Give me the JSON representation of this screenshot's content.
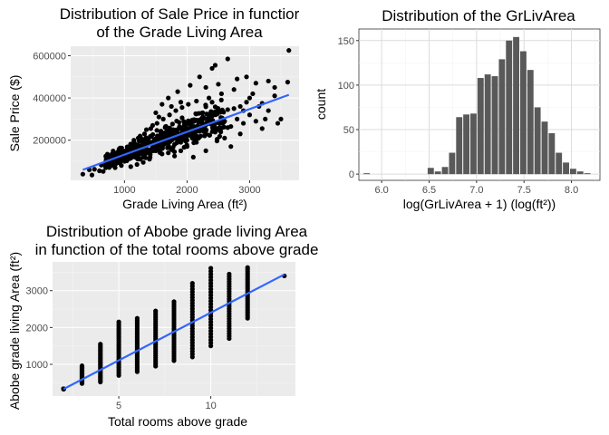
{
  "chart_data": [
    {
      "type": "scatter",
      "title_lines": [
        "Distribution of Sale Price in functior",
        "of the Grade Living Area"
      ],
      "xlabel": "Grade Living Area (ft²)",
      "ylabel": "Sale Price ($)",
      "xlim": [
        140,
        3790
      ],
      "ylim": [
        10000,
        645000
      ],
      "x_ticks": [
        1000,
        2000,
        3000
      ],
      "x_tick_labels": [
        "1000",
        "2000",
        "3000"
      ],
      "y_ticks": [
        200000,
        400000,
        600000
      ],
      "y_tick_labels": [
        "200000",
        "400000",
        "600000"
      ],
      "grid": true,
      "points": [
        [
          334,
          39300
        ],
        [
          438,
          60000
        ],
        [
          480,
          35311
        ],
        [
          520,
          62500
        ],
        [
          600,
          55000
        ],
        [
          630,
          82000
        ],
        [
          660,
          52000
        ],
        [
          700,
          70000
        ],
        [
          720,
          90000
        ],
        [
          760,
          79000
        ],
        [
          800,
          95000
        ],
        [
          830,
          110000
        ],
        [
          860,
          88000
        ],
        [
          880,
          125000
        ],
        [
          900,
          105000
        ],
        [
          920,
          140000
        ],
        [
          950,
          118000
        ],
        [
          980,
          130000
        ],
        [
          1000,
          100000
        ],
        [
          1020,
          150000
        ],
        [
          1050,
          128000
        ],
        [
          1080,
          170000
        ],
        [
          1100,
          115000
        ],
        [
          1120,
          140000
        ],
        [
          1150,
          185000
        ],
        [
          1180,
          130000
        ],
        [
          1200,
          155000
        ],
        [
          1220,
          210000
        ],
        [
          1250,
          145000
        ],
        [
          1280,
          175000
        ],
        [
          1300,
          120000
        ],
        [
          1320,
          230000
        ],
        [
          1350,
          160000
        ],
        [
          1380,
          190000
        ],
        [
          1400,
          140000
        ],
        [
          1420,
          255000
        ],
        [
          1450,
          175000
        ],
        [
          1480,
          205000
        ],
        [
          1500,
          150000
        ],
        [
          1520,
          280000
        ],
        [
          1550,
          185000
        ],
        [
          1580,
          220000
        ],
        [
          1600,
          160000
        ],
        [
          1620,
          300000
        ],
        [
          1650,
          195000
        ],
        [
          1680,
          235000
        ],
        [
          1700,
          170000
        ],
        [
          1720,
          320000
        ],
        [
          1750,
          210000
        ],
        [
          1780,
          250000
        ],
        [
          1800,
          180000
        ],
        [
          1820,
          340000
        ],
        [
          1850,
          220000
        ],
        [
          1880,
          265000
        ],
        [
          1900,
          190000
        ],
        [
          1920,
          355000
        ],
        [
          1950,
          230000
        ],
        [
          1980,
          280000
        ],
        [
          2000,
          200000
        ],
        [
          2020,
          370000
        ],
        [
          2050,
          245000
        ],
        [
          2080,
          295000
        ],
        [
          2100,
          215000
        ],
        [
          2150,
          385000
        ],
        [
          2200,
          260000
        ],
        [
          2250,
          310000
        ],
        [
          2300,
          230000
        ],
        [
          2350,
          400000
        ],
        [
          2400,
          275000
        ],
        [
          2450,
          325000
        ],
        [
          2500,
          250000
        ],
        [
          2550,
          420000
        ],
        [
          2600,
          290000
        ],
        [
          2650,
          345000
        ],
        [
          2700,
          265000
        ],
        [
          2750,
          440000
        ],
        [
          2800,
          300000
        ],
        [
          2850,
          360000
        ],
        [
          2900,
          280000
        ],
        [
          2950,
          380000
        ],
        [
          3000,
          320000
        ],
        [
          3100,
          470000
        ],
        [
          3200,
          375000
        ],
        [
          3300,
          340000
        ],
        [
          3400,
          410000
        ],
        [
          3500,
          300000
        ],
        [
          3608,
          475000
        ],
        [
          3627,
          625000
        ],
        [
          1600,
          370000
        ],
        [
          1700,
          400000
        ],
        [
          1850,
          430000
        ],
        [
          2200,
          500000
        ],
        [
          2450,
          555000
        ],
        [
          2650,
          585000
        ],
        [
          2400,
          540000
        ],
        [
          1900,
          380000
        ],
        [
          2300,
          450000
        ],
        [
          1500,
          330000
        ],
        [
          1650,
          260000
        ],
        [
          1750,
          360000
        ],
        [
          2050,
          460000
        ],
        [
          2500,
          465000
        ],
        [
          2800,
          490000
        ],
        [
          2950,
          500000
        ],
        [
          3050,
          420000
        ],
        [
          3150,
          360000
        ],
        [
          3250,
          300000
        ],
        [
          3400,
          450000
        ],
        [
          3450,
          280000
        ],
        [
          2100,
          120000
        ],
        [
          2300,
          150000
        ],
        [
          2600,
          210000
        ],
        [
          2700,
          170000
        ],
        [
          2850,
          230000
        ],
        [
          3200,
          255000
        ],
        [
          1300,
          95000
        ],
        [
          1200,
          85000
        ],
        [
          1100,
          75000
        ],
        [
          1400,
          110000
        ],
        [
          1600,
          135000
        ],
        [
          1800,
          125000
        ],
        [
          1900,
          150000
        ],
        [
          2000,
          170000
        ],
        [
          950,
          80000
        ],
        [
          850,
          70000
        ],
        [
          1050,
          160000
        ],
        [
          1150,
          200000
        ],
        [
          1250,
          220000
        ],
        [
          1350,
          250000
        ],
        [
          1450,
          270000
        ],
        [
          1550,
          310000
        ],
        [
          1700,
          140000
        ],
        [
          2150,
          190000
        ],
        [
          2250,
          330000
        ],
        [
          2350,
          285000
        ],
        [
          2400,
          380000
        ],
        [
          2550,
          300000
        ],
        [
          2650,
          260000
        ],
        [
          2750,
          350000
        ],
        [
          2900,
          340000
        ],
        [
          3000,
          400000
        ],
        [
          3100,
          290000
        ],
        [
          3300,
          480000
        ]
      ],
      "trend": {
        "x": [
          334,
          3627
        ],
        "y": [
          60000,
          415000
        ]
      }
    },
    {
      "type": "bar",
      "title": "Distribution of the GrLivArea",
      "xlabel": "log(GrLivArea + 1) (log(ft²))",
      "ylabel": "count",
      "xlim": [
        5.76,
        8.3
      ],
      "ylim": [
        -7,
        163
      ],
      "x_ticks": [
        6.0,
        6.5,
        7.0,
        7.5,
        8.0
      ],
      "x_tick_labels": [
        "6.0",
        "6.5",
        "7.0",
        "7.5",
        "8.0"
      ],
      "y_ticks": [
        0,
        50,
        100,
        150
      ],
      "y_tick_labels": [
        "0",
        "50",
        "100",
        "150"
      ],
      "grid": true,
      "bins": [
        {
          "x0": 5.805,
          "x1": 5.88,
          "count": 1
        },
        {
          "x0": 6.48,
          "x1": 6.555,
          "count": 7
        },
        {
          "x0": 6.555,
          "x1": 6.63,
          "count": 3
        },
        {
          "x0": 6.63,
          "x1": 6.705,
          "count": 8
        },
        {
          "x0": 6.705,
          "x1": 6.78,
          "count": 24
        },
        {
          "x0": 6.78,
          "x1": 6.855,
          "count": 64
        },
        {
          "x0": 6.855,
          "x1": 6.93,
          "count": 67
        },
        {
          "x0": 6.93,
          "x1": 7.005,
          "count": 68
        },
        {
          "x0": 7.005,
          "x1": 7.08,
          "count": 108
        },
        {
          "x0": 7.08,
          "x1": 7.155,
          "count": 112
        },
        {
          "x0": 7.155,
          "x1": 7.23,
          "count": 110
        },
        {
          "x0": 7.23,
          "x1": 7.305,
          "count": 129
        },
        {
          "x0": 7.305,
          "x1": 7.38,
          "count": 150
        },
        {
          "x0": 7.38,
          "x1": 7.455,
          "count": 154
        },
        {
          "x0": 7.455,
          "x1": 7.53,
          "count": 138
        },
        {
          "x0": 7.53,
          "x1": 7.605,
          "count": 117
        },
        {
          "x0": 7.605,
          "x1": 7.68,
          "count": 75
        },
        {
          "x0": 7.68,
          "x1": 7.755,
          "count": 59
        },
        {
          "x0": 7.755,
          "x1": 7.83,
          "count": 46
        },
        {
          "x0": 7.83,
          "x1": 7.905,
          "count": 24
        },
        {
          "x0": 7.905,
          "x1": 7.98,
          "count": 13
        },
        {
          "x0": 7.98,
          "x1": 8.055,
          "count": 6
        },
        {
          "x0": 8.055,
          "x1": 8.13,
          "count": 3
        },
        {
          "x0": 8.13,
          "x1": 8.205,
          "count": 1
        }
      ]
    },
    {
      "type": "scatter",
      "title_lines": [
        "Distribution of Abobe grade living Area",
        "in function of the total rooms above grade"
      ],
      "xlabel": "Total rooms above grade",
      "ylabel": "Abobe grade living Area (ft²)",
      "xlim": [
        1.4,
        14.6
      ],
      "ylim": [
        140,
        3780
      ],
      "x_ticks": [
        5,
        10
      ],
      "x_tick_labels": [
        "5",
        "10"
      ],
      "y_ticks": [
        1000,
        2000,
        3000
      ],
      "y_tick_labels": [
        "1000",
        "2000",
        "3000"
      ],
      "grid": true,
      "columns": [
        {
          "x": 2,
          "min": 334,
          "max": 334
        },
        {
          "x": 3,
          "min": 480,
          "max": 960
        },
        {
          "x": 4,
          "min": 520,
          "max": 1550
        },
        {
          "x": 5,
          "min": 700,
          "max": 2150
        },
        {
          "x": 6,
          "min": 800,
          "max": 2250
        },
        {
          "x": 7,
          "min": 950,
          "max": 2450
        },
        {
          "x": 8,
          "min": 1100,
          "max": 2700
        },
        {
          "x": 9,
          "min": 1200,
          "max": 3200
        },
        {
          "x": 10,
          "min": 1500,
          "max": 3608
        },
        {
          "x": 11,
          "min": 1700,
          "max": 3450
        },
        {
          "x": 12,
          "min": 2250,
          "max": 3627
        }
      ],
      "extra_points": [
        [
          14,
          3400
        ]
      ],
      "trend": {
        "x": [
          2,
          14
        ],
        "y": [
          330,
          3440
        ]
      }
    }
  ]
}
